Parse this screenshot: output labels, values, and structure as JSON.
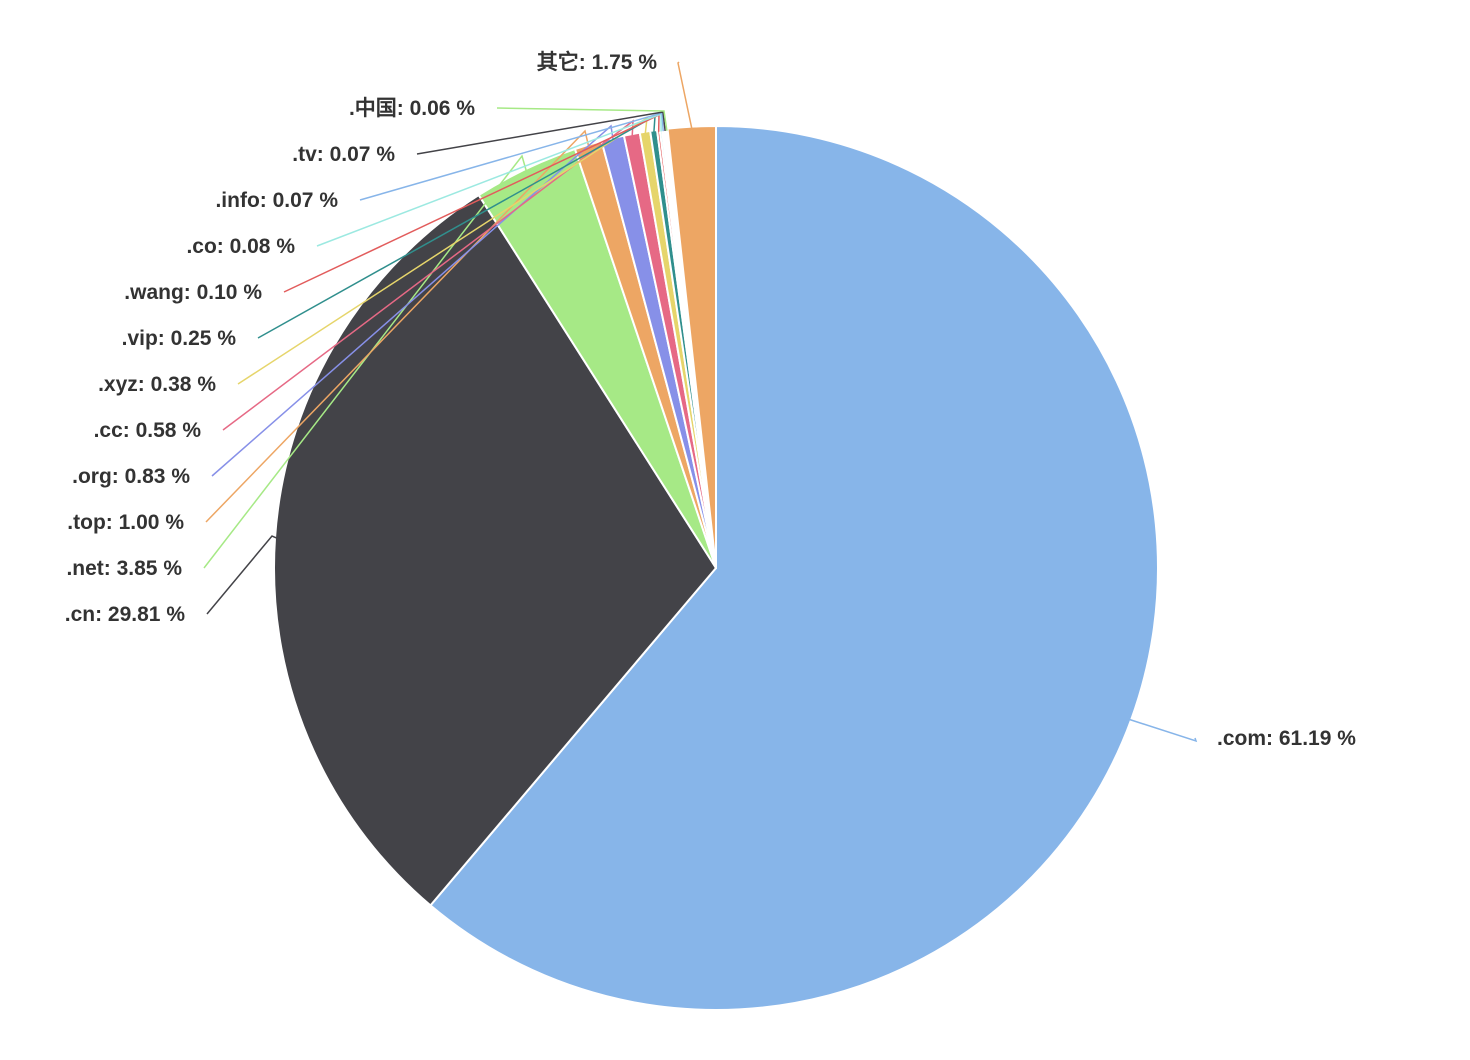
{
  "chart_data": {
    "type": "pie",
    "start_angle_deg": 0,
    "direction": "clockwise",
    "label_format": "{name}: {value} %",
    "slices": [
      {
        "name": ".com",
        "value": 61.19,
        "color": "#87b5e9"
      },
      {
        "name": ".cn",
        "value": 29.81,
        "color": "#434348"
      },
      {
        "name": ".net",
        "value": 3.85,
        "color": "#a6e986"
      },
      {
        "name": ".top",
        "value": 1.0,
        "color": "#eda664"
      },
      {
        "name": ".org",
        "value": 0.83,
        "color": "#8790e8"
      },
      {
        "name": ".cc",
        "value": 0.58,
        "color": "#e66985"
      },
      {
        "name": ".xyz",
        "value": 0.38,
        "color": "#e6d56b"
      },
      {
        "name": ".vip",
        "value": 0.25,
        "color": "#308f8d"
      },
      {
        "name": ".wang",
        "value": 0.1,
        "color": "#e25c5c"
      },
      {
        "name": ".co",
        "value": 0.08,
        "color": "#9ce9e1"
      },
      {
        "name": ".info",
        "value": 0.07,
        "color": "#87b5e9"
      },
      {
        "name": ".tv",
        "value": 0.07,
        "color": "#434348"
      },
      {
        "name": ".中国",
        "value": 0.06,
        "color": "#a6e986"
      },
      {
        "name": "其它",
        "value": 1.75,
        "color": "#eda664"
      }
    ]
  }
}
